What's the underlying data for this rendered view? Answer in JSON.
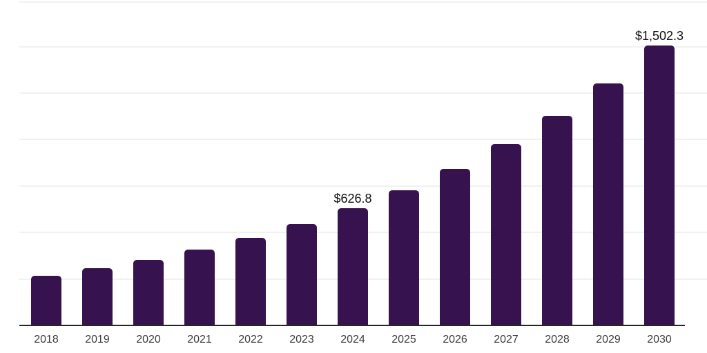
{
  "chart_data": {
    "type": "bar",
    "title": "",
    "xlabel": "",
    "ylabel": "",
    "categories": [
      "2018",
      "2019",
      "2020",
      "2021",
      "2022",
      "2023",
      "2024",
      "2025",
      "2026",
      "2027",
      "2028",
      "2029",
      "2030"
    ],
    "values": [
      261.6,
      302.6,
      350.0,
      404.9,
      468.4,
      541.8,
      626.8,
      725.1,
      838.8,
      970.4,
      1122.6,
      1298.7,
      1502.3
    ],
    "data_labels": [
      {
        "category": "2024",
        "index": 6,
        "text": "$626.8"
      },
      {
        "category": "2030",
        "index": 12,
        "text": "$1,502.3"
      }
    ],
    "ylim": [
      0,
      1750
    ],
    "gridline_values": [
      250,
      500,
      750,
      1000,
      1250,
      1500,
      1750
    ],
    "grid": true,
    "legend": "none",
    "colors": {
      "bar": "#36124e",
      "axis_line": "#262626",
      "gridline": "#f1f1f1",
      "tick_label": "#3d3d3d",
      "data_label": "#111111",
      "background": "#ffffff"
    }
  }
}
